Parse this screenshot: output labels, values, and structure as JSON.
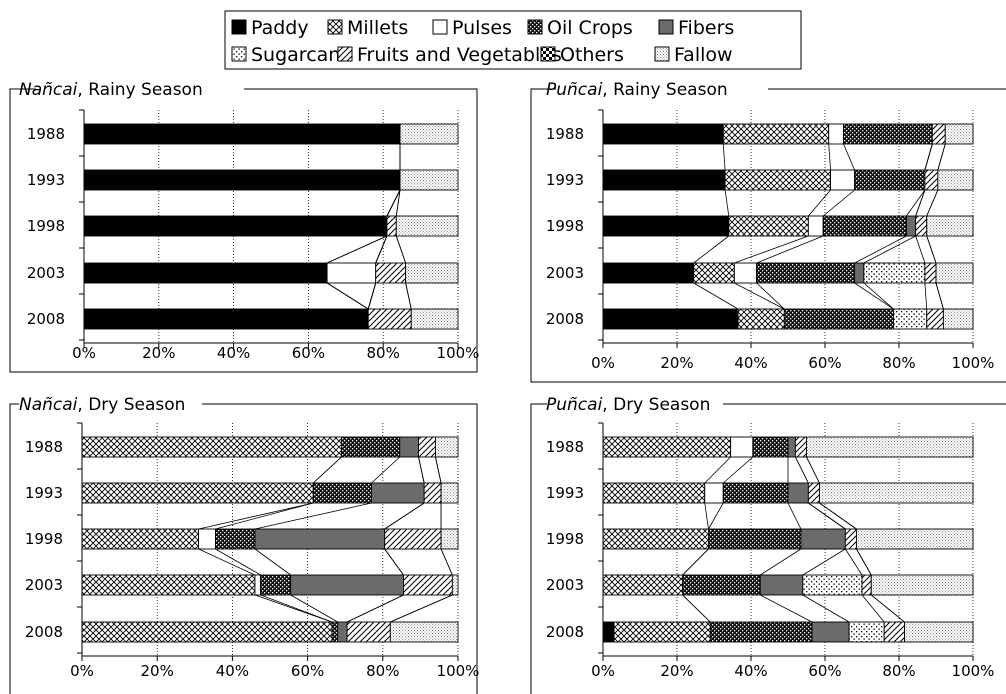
{
  "legend": {
    "items": [
      {
        "label": "Paddy",
        "pattern": "solid-black"
      },
      {
        "label": "Millets",
        "pattern": "crosshatch"
      },
      {
        "label": "Pulses",
        "pattern": "white"
      },
      {
        "label": "Oil Crops",
        "pattern": "dark-dotted"
      },
      {
        "label": "Fibers",
        "pattern": "solid-gray"
      },
      {
        "label": "Sugarcane",
        "pattern": "sparse-dots"
      },
      {
        "label": "Fruits and Vegetables",
        "pattern": "diagonal-lines"
      },
      {
        "label": "Others",
        "pattern": "checker"
      },
      {
        "label": "Fallow",
        "pattern": "light-dots"
      }
    ]
  },
  "colors": {
    "border": "#000000",
    "grid": "#000000",
    "fibers": "#6b6b6b",
    "background": "#ffffff"
  },
  "chart_data": [
    {
      "type": "bar",
      "orientation": "horizontal-stacked-percent",
      "title_italic": "Nañcai",
      "title_rest": ", Rainy Season",
      "categories": [
        "1988",
        "1993",
        "1998",
        "2003",
        "2008"
      ],
      "xlim": [
        0,
        100
      ],
      "xticks": [
        "0%",
        "20%",
        "40%",
        "60%",
        "80%",
        "100%"
      ],
      "grid": "vertical dotted",
      "series": [
        {
          "name": "Paddy",
          "values": [
            84.5,
            84.5,
            81,
            65,
            76
          ]
        },
        {
          "name": "Millets",
          "values": [
            0,
            0,
            0,
            0,
            0
          ]
        },
        {
          "name": "Pulses",
          "values": [
            0,
            0,
            0,
            13,
            0
          ]
        },
        {
          "name": "Oil Crops",
          "values": [
            0,
            0,
            0,
            0,
            0
          ]
        },
        {
          "name": "Fibers",
          "values": [
            0,
            0,
            0,
            0,
            0
          ]
        },
        {
          "name": "Sugarcane",
          "values": [
            0,
            0,
            0,
            0,
            0
          ]
        },
        {
          "name": "Fruits and Vegetables",
          "values": [
            0,
            0,
            2.5,
            8,
            11.5
          ]
        },
        {
          "name": "Others",
          "values": [
            0,
            0,
            0,
            0,
            0
          ]
        },
        {
          "name": "Fallow",
          "values": [
            15.5,
            15.5,
            16.5,
            14,
            12.5
          ]
        }
      ]
    },
    {
      "type": "bar",
      "orientation": "horizontal-stacked-percent",
      "title_italic": "Puñcai",
      "title_rest": ", Rainy Season",
      "categories": [
        "1988",
        "1993",
        "1998",
        "2003",
        "2008"
      ],
      "xlim": [
        0,
        100
      ],
      "xticks": [
        "0%",
        "20%",
        "40%",
        "60%",
        "80%",
        "100%"
      ],
      "grid": "vertical dotted",
      "series": [
        {
          "name": "Paddy",
          "values": [
            32.5,
            33,
            34,
            24.5,
            36.5
          ]
        },
        {
          "name": "Millets",
          "values": [
            28.5,
            28.5,
            21.5,
            11,
            12.5
          ]
        },
        {
          "name": "Pulses",
          "values": [
            4,
            6.5,
            4,
            6,
            0
          ]
        },
        {
          "name": "Oil Crops",
          "values": [
            24,
            19,
            22.5,
            26.5,
            29.5
          ]
        },
        {
          "name": "Fibers",
          "values": [
            0,
            0,
            2.5,
            2.5,
            0
          ]
        },
        {
          "name": "Sugarcane",
          "values": [
            0,
            0,
            0,
            16.5,
            9
          ]
        },
        {
          "name": "Fruits and Vegetables",
          "values": [
            3.5,
            3.5,
            3,
            3,
            4.5
          ]
        },
        {
          "name": "Others",
          "values": [
            0,
            0,
            0,
            0,
            0
          ]
        },
        {
          "name": "Fallow",
          "values": [
            7.5,
            9.5,
            12.5,
            10,
            8
          ]
        }
      ]
    },
    {
      "type": "bar",
      "orientation": "horizontal-stacked-percent",
      "title_italic": "Nañcai",
      "title_rest": ", Dry Season",
      "categories": [
        "1988",
        "1993",
        "1998",
        "2003",
        "2008"
      ],
      "xlim": [
        0,
        100
      ],
      "xticks": [
        "0%",
        "20%",
        "40%",
        "60%",
        "80%",
        "100%"
      ],
      "grid": "vertical dotted",
      "series": [
        {
          "name": "Paddy",
          "values": [
            0,
            0,
            0,
            0,
            0
          ]
        },
        {
          "name": "Millets",
          "values": [
            69,
            61.5,
            31,
            46,
            66.5
          ]
        },
        {
          "name": "Pulses",
          "values": [
            0,
            0,
            4.5,
            1.5,
            0
          ]
        },
        {
          "name": "Oil Crops",
          "values": [
            15.5,
            15.5,
            10.5,
            8,
            1.5
          ]
        },
        {
          "name": "Fibers",
          "values": [
            5,
            14,
            34.5,
            30,
            2.5
          ]
        },
        {
          "name": "Sugarcane",
          "values": [
            0,
            0,
            0,
            0,
            0
          ]
        },
        {
          "name": "Fruits and Vegetables",
          "values": [
            4.5,
            4.5,
            15,
            13,
            11.5
          ]
        },
        {
          "name": "Others",
          "values": [
            0,
            0,
            0,
            0,
            0
          ]
        },
        {
          "name": "Fallow",
          "values": [
            6,
            4.5,
            4.5,
            1.5,
            18
          ]
        }
      ]
    },
    {
      "type": "bar",
      "orientation": "horizontal-stacked-percent",
      "title_italic": "Puñcai",
      "title_rest": ", Dry Season",
      "categories": [
        "1988",
        "1993",
        "1998",
        "2003",
        "2008"
      ],
      "xlim": [
        0,
        100
      ],
      "xticks": [
        "0%",
        "20%",
        "40%",
        "60%",
        "80%",
        "100%"
      ],
      "grid": "vertical dotted",
      "series": [
        {
          "name": "Paddy",
          "values": [
            0,
            0,
            0,
            0,
            3
          ]
        },
        {
          "name": "Millets",
          "values": [
            34.5,
            27.5,
            28.5,
            21.5,
            26
          ]
        },
        {
          "name": "Pulses",
          "values": [
            6,
            5,
            0,
            0,
            0
          ]
        },
        {
          "name": "Oil Crops",
          "values": [
            9.5,
            17.5,
            25,
            21,
            27.5
          ]
        },
        {
          "name": "Fibers",
          "values": [
            2,
            5.5,
            12,
            11.5,
            10
          ]
        },
        {
          "name": "Sugarcane",
          "values": [
            0,
            0,
            0,
            16,
            9.5
          ]
        },
        {
          "name": "Fruits and Vegetables",
          "values": [
            3,
            3,
            3,
            2.5,
            5.5
          ]
        },
        {
          "name": "Others",
          "values": [
            0,
            0,
            0,
            0,
            0
          ]
        },
        {
          "name": "Fallow",
          "values": [
            45,
            41.5,
            31.5,
            27.5,
            18.5
          ]
        }
      ]
    }
  ]
}
